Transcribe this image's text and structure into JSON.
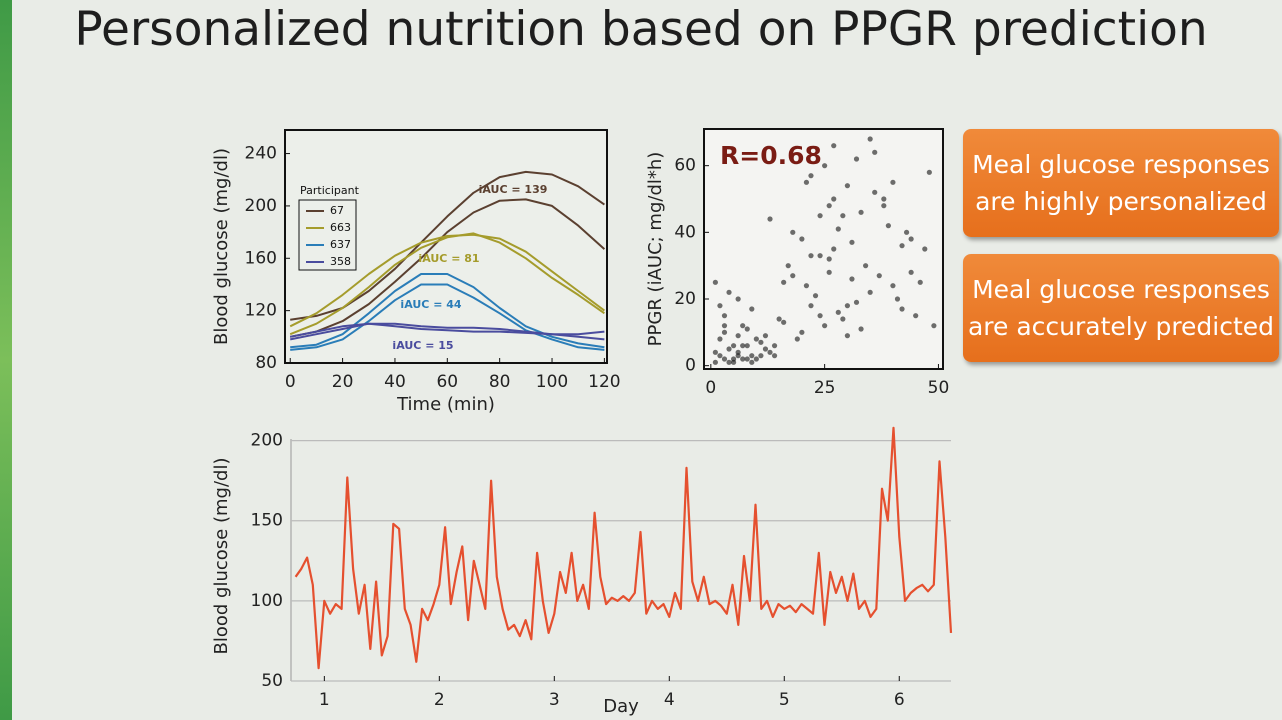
{
  "title": "Personalized nutrition based on PPGR prediction",
  "callouts": [
    {
      "lines": [
        "Meal glucose responses",
        "are highly personalized"
      ]
    },
    {
      "lines": [
        "Meal glucose responses",
        "are accurately predicted"
      ]
    }
  ],
  "chart_data": [
    {
      "type": "line",
      "x_label": "Time (min)",
      "y_label": "Blood glucose (mg/dl)",
      "x": [
        0,
        10,
        20,
        30,
        40,
        50,
        60,
        70,
        80,
        90,
        100,
        110,
        120
      ],
      "xlim": [
        -2,
        121
      ],
      "xticks": [
        0,
        20,
        40,
        60,
        80,
        100,
        120
      ],
      "ylim": [
        80,
        258
      ],
      "yticks": [
        80,
        120,
        160,
        200,
        240
      ],
      "legend_title": "Participant",
      "annotations": [
        "iAUC = 139",
        "iAUC = 81",
        "iAUC = 44",
        "iAUC = 15"
      ],
      "series": [
        {
          "name": "67",
          "color": "#5b4030",
          "values": [
            [
              113,
              116,
              122,
              135,
              152,
              172,
              192,
              210,
              222,
              226,
              224,
              215,
              201
            ],
            [
              100,
              104,
              112,
              125,
              142,
              160,
              180,
              195,
              204,
              205,
              200,
              185,
              167
            ]
          ]
        },
        {
          "name": "663",
          "color": "#a59c2c",
          "values": [
            [
              108,
              118,
              132,
              148,
              162,
              172,
              177,
              178,
              175,
              165,
              150,
              135,
              120
            ],
            [
              102,
              110,
              122,
              138,
              155,
              168,
              176,
              179,
              172,
              160,
              145,
              132,
              118
            ]
          ]
        },
        {
          "name": "637",
          "color": "#2a7db8",
          "values": [
            [
              92,
              94,
              102,
              118,
              135,
              148,
              148,
              138,
              122,
              108,
              100,
              95,
              92
            ],
            [
              90,
              92,
              98,
              112,
              128,
              140,
              140,
              130,
              118,
              105,
              98,
              92,
              90
            ]
          ]
        },
        {
          "name": "358",
          "color": "#4a4c9e",
          "values": [
            [
              98,
              102,
              106,
              110,
              110,
              108,
              107,
              107,
              106,
              104,
              102,
              102,
              104
            ],
            [
              100,
              104,
              108,
              110,
              108,
              106,
              105,
              104,
              104,
              103,
              102,
              100,
              98
            ]
          ]
        }
      ]
    },
    {
      "type": "scatter",
      "y_label": "PPGR (iAUC; mg/dl*h)",
      "annotation": "R=0.68",
      "color": "#111111",
      "xlim": [
        -1.5,
        51
      ],
      "xticks": [
        0,
        25,
        50
      ],
      "ylim": [
        -1,
        71
      ],
      "yticks": [
        0,
        20,
        40,
        60
      ],
      "x": [
        1,
        2,
        3,
        4,
        5,
        6,
        7,
        8,
        9,
        10,
        2,
        4,
        6,
        8,
        3,
        5,
        7,
        1,
        9,
        11,
        12,
        3,
        6,
        14,
        2,
        5,
        8,
        10,
        13,
        4,
        15,
        7,
        1,
        3,
        9,
        11,
        6,
        12,
        16,
        18,
        20,
        22,
        24,
        17,
        19,
        21,
        25,
        27,
        14,
        23,
        26,
        28,
        30,
        18,
        32,
        22,
        29,
        16,
        31,
        24,
        35,
        27,
        20,
        33,
        13,
        26,
        37,
        21,
        30,
        28,
        34,
        38,
        25,
        40,
        42,
        36,
        45,
        32,
        39,
        44,
        48,
        27,
        41,
        33,
        47,
        30,
        43,
        36,
        49,
        24,
        38,
        46,
        29,
        35,
        42,
        22,
        31,
        44,
        40,
        26
      ],
      "y": [
        1,
        3,
        2,
        5,
        1,
        4,
        2,
        6,
        3,
        2,
        8,
        1,
        3,
        2,
        10,
        6,
        12,
        4,
        1,
        7,
        5,
        15,
        9,
        3,
        18,
        2,
        11,
        8,
        4,
        22,
        14,
        6,
        25,
        12,
        17,
        3,
        20,
        9,
        13,
        27,
        10,
        18,
        15,
        30,
        8,
        24,
        12,
        35,
        6,
        21,
        28,
        16,
        9,
        40,
        19,
        33,
        14,
        25,
        37,
        45,
        22,
        50,
        38,
        11,
        44,
        32,
        27,
        55,
        18,
        41,
        30,
        48,
        60,
        24,
        36,
        52,
        15,
        62,
        42,
        28,
        58,
        66,
        20,
        46,
        35,
        54,
        40,
        64,
        12,
        33,
        50,
        25,
        45,
        68,
        17,
        57,
        26,
        38,
        55,
        48
      ]
    },
    {
      "type": "line",
      "x_label": "Day",
      "y_label": "Blood glucose (mg/dl)",
      "grid": true,
      "xlim": [
        0.71,
        6.45
      ],
      "xticks": [
        1,
        2,
        3,
        4,
        5,
        6
      ],
      "ylim": [
        50,
        206
      ],
      "yticks": [
        50,
        100,
        150,
        200
      ],
      "x": [
        0.75,
        0.8,
        0.85,
        0.9,
        0.95,
        1,
        1.05,
        1.1,
        1.15,
        1.2,
        1.25,
        1.3,
        1.35,
        1.4,
        1.45,
        1.5,
        1.55,
        1.6,
        1.65,
        1.7,
        1.75,
        1.8,
        1.85,
        1.9,
        1.95,
        2,
        2.05,
        2.1,
        2.15,
        2.2,
        2.25,
        2.3,
        2.35,
        2.4,
        2.45,
        2.5,
        2.55,
        2.6,
        2.65,
        2.7,
        2.75,
        2.8,
        2.85,
        2.9,
        2.95,
        3,
        3.05,
        3.1,
        3.15,
        3.2,
        3.25,
        3.3,
        3.35,
        3.4,
        3.45,
        3.5,
        3.55,
        3.6,
        3.65,
        3.7,
        3.75,
        3.8,
        3.85,
        3.9,
        3.95,
        4,
        4.05,
        4.1,
        4.15,
        4.2,
        4.25,
        4.3,
        4.35,
        4.4,
        4.45,
        4.5,
        4.55,
        4.6,
        4.65,
        4.7,
        4.75,
        4.8,
        4.85,
        4.9,
        4.95,
        5,
        5.05,
        5.1,
        5.15,
        5.2,
        5.25,
        5.3,
        5.35,
        5.4,
        5.45,
        5.5,
        5.55,
        5.6,
        5.65,
        5.7,
        5.75,
        5.8,
        5.85,
        5.9,
        5.95,
        6,
        6.05,
        6.1,
        6.15,
        6.2,
        6.25,
        6.3,
        6.35,
        6.4,
        6.45
      ],
      "series": [
        {
          "color": "#e5502f",
          "values": [
            115,
            120,
            127,
            110,
            58,
            100,
            92,
            98,
            95,
            177,
            120,
            92,
            110,
            70,
            112,
            66,
            78,
            148,
            145,
            95,
            85,
            62,
            95,
            88,
            98,
            110,
            146,
            98,
            118,
            134,
            88,
            125,
            110,
            95,
            175,
            115,
            95,
            82,
            85,
            78,
            88,
            76,
            130,
            100,
            80,
            92,
            118,
            105,
            130,
            100,
            110,
            95,
            155,
            115,
            98,
            102,
            100,
            103,
            100,
            105,
            143,
            92,
            100,
            95,
            98,
            90,
            105,
            95,
            183,
            112,
            100,
            115,
            98,
            100,
            97,
            92,
            110,
            85,
            128,
            100,
            160,
            95,
            100,
            90,
            98,
            95,
            97,
            93,
            98,
            95,
            92,
            130,
            85,
            118,
            105,
            115,
            100,
            117,
            95,
            100,
            90,
            95,
            170,
            150,
            208,
            140,
            100,
            105,
            108,
            110,
            106,
            110,
            187,
            140,
            80
          ]
        }
      ]
    }
  ]
}
